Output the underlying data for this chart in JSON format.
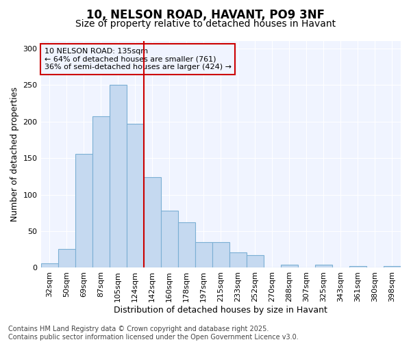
{
  "title": "10, NELSON ROAD, HAVANT, PO9 3NF",
  "subtitle": "Size of property relative to detached houses in Havant",
  "xlabel": "Distribution of detached houses by size in Havant",
  "ylabel": "Number of detached properties",
  "categories": [
    "32sqm",
    "50sqm",
    "69sqm",
    "87sqm",
    "105sqm",
    "124sqm",
    "142sqm",
    "160sqm",
    "178sqm",
    "197sqm",
    "215sqm",
    "233sqm",
    "252sqm",
    "270sqm",
    "288sqm",
    "307sqm",
    "325sqm",
    "343sqm",
    "361sqm",
    "380sqm",
    "398sqm"
  ],
  "values": [
    6,
    26,
    156,
    207,
    250,
    197,
    124,
    78,
    62,
    35,
    35,
    21,
    17,
    0,
    4,
    0,
    4,
    0,
    2,
    0,
    2
  ],
  "bar_color": "#c5d9f0",
  "bar_edge_color": "#7bafd4",
  "vline_x": 5.5,
  "vline_color": "#cc0000",
  "annotation_line1": "10 NELSON ROAD: 135sqm",
  "annotation_line2": "← 64% of detached houses are smaller (761)",
  "annotation_line3": "36% of semi-detached houses are larger (424) →",
  "box_edge_color": "#cc0000",
  "ylim": [
    0,
    310
  ],
  "yticks": [
    0,
    50,
    100,
    150,
    200,
    250,
    300
  ],
  "bg_color": "#ffffff",
  "plot_bg_color": "#f0f4ff",
  "footer": "Contains HM Land Registry data © Crown copyright and database right 2025.\nContains public sector information licensed under the Open Government Licence v3.0.",
  "title_fontsize": 12,
  "subtitle_fontsize": 10,
  "axis_label_fontsize": 9,
  "tick_fontsize": 8,
  "annotation_fontsize": 8,
  "footer_fontsize": 7
}
